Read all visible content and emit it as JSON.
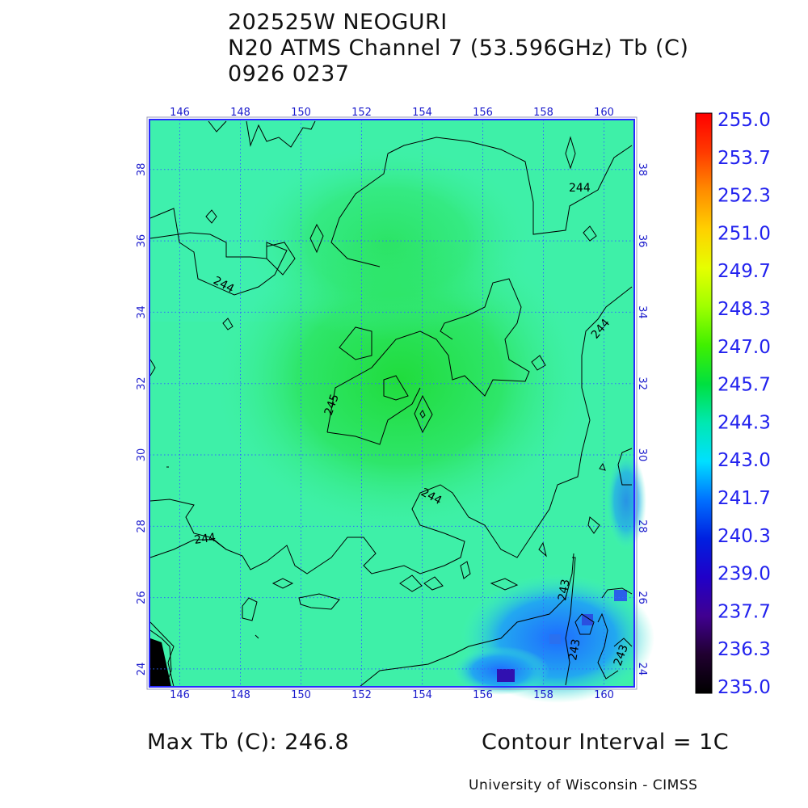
{
  "header": {
    "storm": "202525W NEOGURI",
    "product": "N20 ATMS Channel 7 (53.596GHz) Tb (C)",
    "datetime": "0926 0237"
  },
  "map": {
    "lon_ticks": [
      "146",
      "148",
      "150",
      "152",
      "154",
      "156",
      "158",
      "160"
    ],
    "lat_ticks": [
      "24",
      "26",
      "28",
      "30",
      "32",
      "34",
      "36",
      "38"
    ],
    "contour_labels": [
      "244",
      "244",
      "244",
      "244",
      "244",
      "245",
      "243",
      "243",
      "243"
    ],
    "colors": {
      "frame": "#2222ff",
      "grid": "#3366ff",
      "field_base": "#3ef0a0",
      "field_warm": "#22e04a",
      "field_cold": "#1e90ff",
      "contour": "#000000"
    }
  },
  "colorbar": {
    "labels": [
      "255.0",
      "253.7",
      "252.3",
      "251.0",
      "249.7",
      "248.3",
      "247.0",
      "245.7",
      "244.3",
      "243.0",
      "241.7",
      "240.3",
      "239.0",
      "237.7",
      "236.3",
      "235.0"
    ],
    "stops": [
      "#ff0000",
      "#ff3a00",
      "#ff8c00",
      "#ffd000",
      "#e6ff00",
      "#a0ff00",
      "#40f000",
      "#00e040",
      "#00e8b0",
      "#00e0ff",
      "#0070ff",
      "#0020e0",
      "#2000c8",
      "#400090",
      "#200030",
      "#000000"
    ]
  },
  "footer": {
    "max_tb": "Max Tb (C): 246.8",
    "contour_interval": "Contour Interval = 1C",
    "credit": "University of Wisconsin - CIMSS"
  }
}
